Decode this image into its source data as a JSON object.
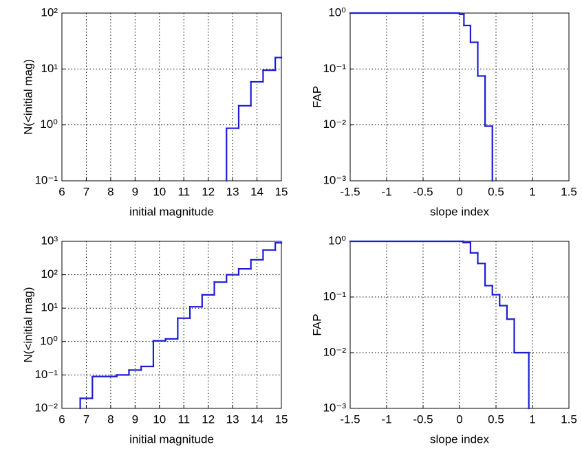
{
  "chart_data": [
    {
      "type": "step",
      "xlabel": "initial magnitude",
      "ylabel": "N(<initial mag)",
      "log_y": true,
      "grid": true,
      "color": "#1c1cd6",
      "x": [
        6,
        12.75,
        13.25,
        13.75,
        14.25,
        14.75,
        15
      ],
      "values": [
        0,
        0.87,
        2.2,
        5.9,
        9.5,
        16,
        16
      ],
      "xlim": [
        6,
        15
      ],
      "xticks": [
        6,
        7,
        8,
        9,
        10,
        11,
        12,
        13,
        14,
        15
      ],
      "ylim": [
        0.1,
        100
      ],
      "yticks": [
        {
          "value": 0.1,
          "label": "10⁻¹"
        },
        {
          "value": 1,
          "label": "10⁰"
        },
        {
          "value": 10,
          "label": "10¹"
        },
        {
          "value": 100,
          "label": "10²"
        }
      ]
    },
    {
      "type": "step",
      "xlabel": "slope index",
      "ylabel": "FAP",
      "log_y": true,
      "grid": true,
      "color": "#1c1cd6",
      "x": [
        -1.5,
        0.0,
        0.06,
        0.15,
        0.25,
        0.35,
        0.45
      ],
      "values": [
        1,
        0.95,
        0.6,
        0.3,
        0.075,
        0.0095,
        0
      ],
      "xlim": [
        -1.5,
        1.5
      ],
      "xticks": [
        -1.5,
        -1,
        -0.5,
        0,
        0.5,
        1,
        1.5
      ],
      "ylim": [
        0.001,
        1
      ],
      "yticks": [
        {
          "value": 0.001,
          "label": "10⁻³"
        },
        {
          "value": 0.01,
          "label": "10⁻²"
        },
        {
          "value": 0.1,
          "label": "10⁻¹"
        },
        {
          "value": 1,
          "label": "10⁰"
        }
      ]
    },
    {
      "type": "step",
      "xlabel": "initial magnitude",
      "ylabel": "N(<initial mag)",
      "log_y": true,
      "grid": true,
      "color": "#1c1cd6",
      "x": [
        6,
        6.75,
        7.25,
        8.25,
        8.75,
        9.25,
        9.75,
        10.25,
        10.75,
        11.25,
        11.75,
        12.25,
        12.75,
        13.25,
        13.75,
        14.25,
        14.75,
        15
      ],
      "values": [
        0,
        0.02,
        0.09,
        0.1,
        0.14,
        0.18,
        1.05,
        1.2,
        5,
        11,
        25,
        60,
        100,
        150,
        280,
        550,
        900,
        900
      ],
      "xlim": [
        6,
        15
      ],
      "xticks": [
        6,
        7,
        8,
        9,
        10,
        11,
        12,
        13,
        14,
        15
      ],
      "ylim": [
        0.01,
        1000
      ],
      "yticks": [
        {
          "value": 0.01,
          "label": "10⁻²"
        },
        {
          "value": 0.1,
          "label": "10⁻¹"
        },
        {
          "value": 1,
          "label": "10⁰"
        },
        {
          "value": 10,
          "label": "10¹"
        },
        {
          "value": 100,
          "label": "10²"
        },
        {
          "value": 1000,
          "label": "10³"
        }
      ]
    },
    {
      "type": "step",
      "xlabel": "slope index",
      "ylabel": "FAP",
      "log_y": true,
      "grid": true,
      "color": "#1c1cd6",
      "x": [
        -1.5,
        0.05,
        0.15,
        0.25,
        0.35,
        0.45,
        0.55,
        0.65,
        0.75,
        0.95
      ],
      "values": [
        1,
        0.95,
        0.62,
        0.4,
        0.16,
        0.11,
        0.07,
        0.04,
        0.01,
        0
      ],
      "xlim": [
        -1.5,
        1.5
      ],
      "xticks": [
        -1.5,
        -1,
        -0.5,
        0,
        0.5,
        1,
        1.5
      ],
      "ylim": [
        0.001,
        1
      ],
      "yticks": [
        {
          "value": 0.001,
          "label": "10⁻³"
        },
        {
          "value": 0.01,
          "label": "10⁻²"
        },
        {
          "value": 0.1,
          "label": "10⁻¹"
        },
        {
          "value": 1,
          "label": "10⁰"
        }
      ]
    }
  ]
}
